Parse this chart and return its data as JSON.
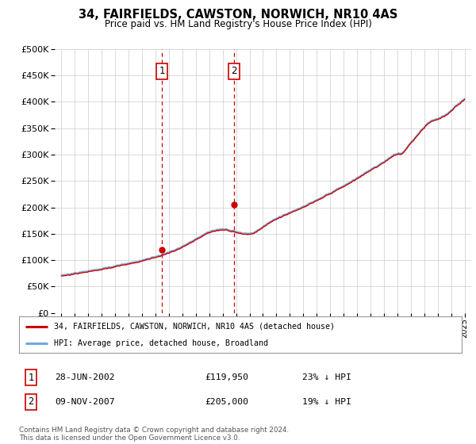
{
  "title": "34, FAIRFIELDS, CAWSTON, NORWICH, NR10 4AS",
  "subtitle": "Price paid vs. HM Land Registry's House Price Index (HPI)",
  "legend_line1": "34, FAIRFIELDS, CAWSTON, NORWICH, NR10 4AS (detached house)",
  "legend_line2": "HPI: Average price, detached house, Broadland",
  "sale1_date": "28-JUN-2002",
  "sale1_price": 119950,
  "sale1_pct": "23% ↓ HPI",
  "sale2_date": "09-NOV-2007",
  "sale2_price": 205000,
  "sale2_pct": "19% ↓ HPI",
  "sale1_x": 2002.49,
  "sale2_x": 2007.86,
  "hpi_color": "#6fa8dc",
  "price_color": "#cc0000",
  "vline_color": "#cc0000",
  "shade_color": "#dce6f1",
  "plot_bg": "#ffffff",
  "footer": "Contains HM Land Registry data © Crown copyright and database right 2024.\nThis data is licensed under the Open Government Licence v3.0.",
  "ylim": [
    0,
    500000
  ],
  "yticks": [
    0,
    50000,
    100000,
    150000,
    200000,
    250000,
    300000,
    350000,
    400000,
    450000,
    500000
  ],
  "xlabel_years": [
    1995,
    1996,
    1997,
    1998,
    1999,
    2000,
    2001,
    2002,
    2003,
    2004,
    2005,
    2006,
    2007,
    2008,
    2009,
    2010,
    2011,
    2012,
    2013,
    2014,
    2015,
    2016,
    2017,
    2018,
    2019,
    2020,
    2021,
    2022,
    2023,
    2024,
    2025
  ],
  "xlim": [
    1994.5,
    2025.5
  ]
}
